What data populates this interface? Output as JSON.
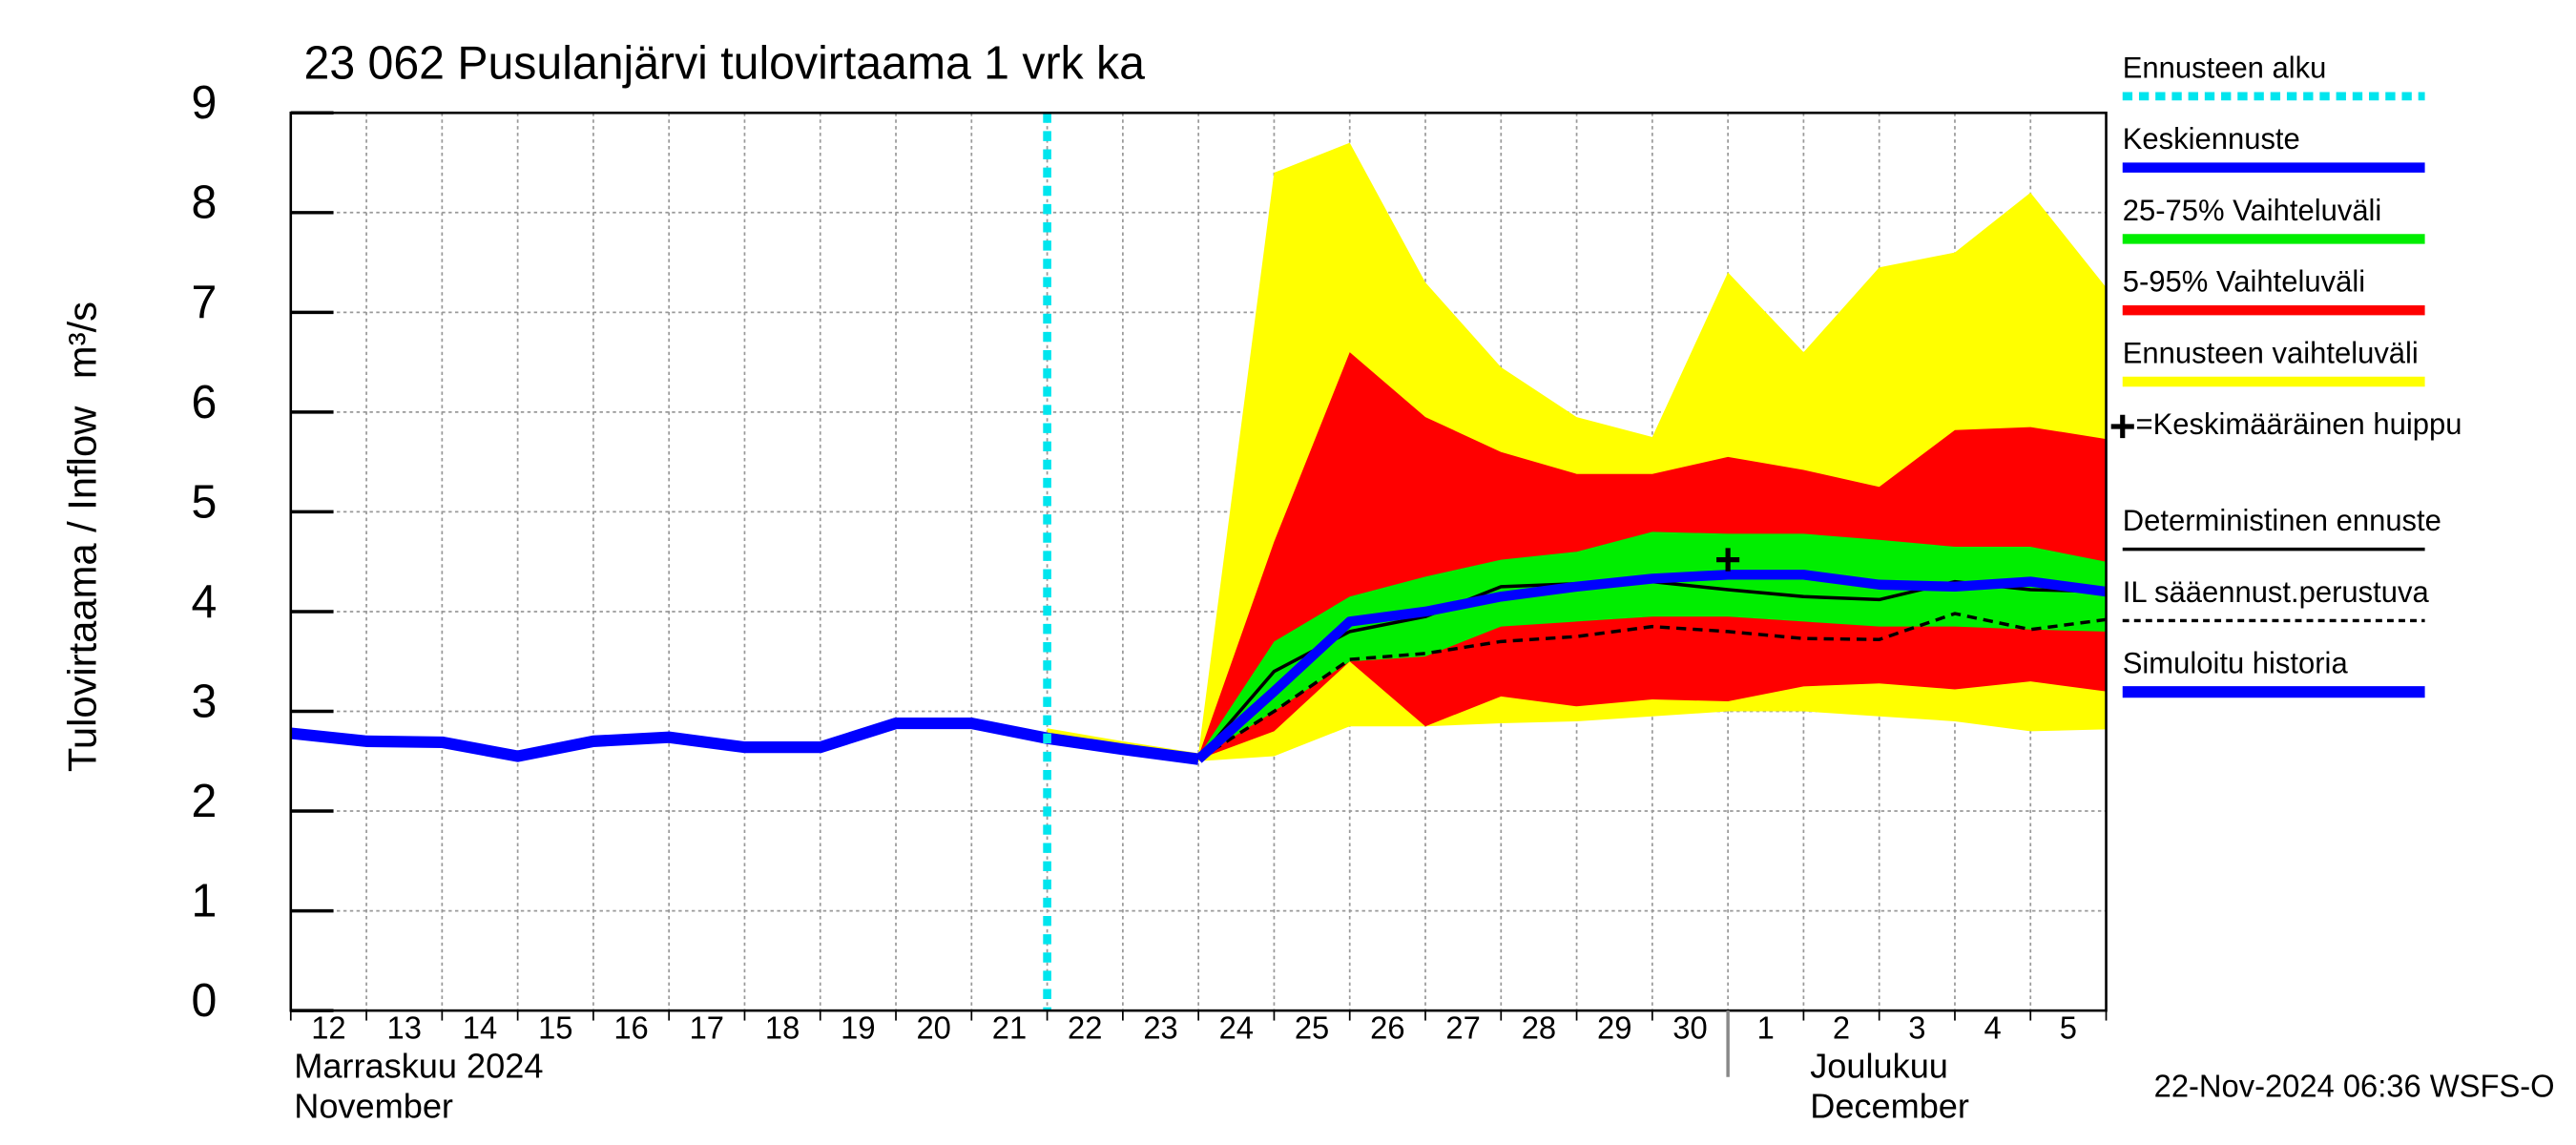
{
  "chart_data": {
    "type": "line",
    "title": "23 062 Pusulanjärvi tulovirtaama 1 vrk ka",
    "y_label": "Tulovirtaama / Inflow",
    "y_unit": "m³/s",
    "timestamp": "22-Nov-2024 06:36 WSFS-O",
    "categories": [
      "12",
      "13",
      "14",
      "15",
      "16",
      "17",
      "18",
      "19",
      "20",
      "21",
      "22",
      "23",
      "24",
      "25",
      "26",
      "27",
      "28",
      "29",
      "30",
      "1",
      "2",
      "3",
      "4",
      "5",
      null
    ],
    "months": [
      {
        "at": "12",
        "label": "Marraskuu 2024",
        "sub": "November"
      },
      {
        "at": "1",
        "label": "Joulukuu",
        "sub": "December"
      }
    ],
    "ylim": [
      0,
      9
    ],
    "yticks": [
      0,
      1,
      2,
      3,
      4,
      5,
      6,
      7,
      8,
      9
    ],
    "grid": true,
    "series": [
      {
        "name": "Ennusteen alku",
        "kind": "vline",
        "at": "22",
        "color": "#00e5ee",
        "width": 5,
        "dash": "6 5"
      },
      {
        "name": "Keskiennuste",
        "kind": "line",
        "color": "#0000ff",
        "width": 6,
        "values": [
          null,
          null,
          null,
          null,
          null,
          null,
          null,
          null,
          null,
          null,
          null,
          null,
          2.52,
          3.2,
          3.9,
          4.0,
          4.15,
          4.25,
          4.33,
          4.37,
          4.37,
          4.27,
          4.25,
          4.3,
          4.2
        ]
      },
      {
        "name": "25-75% Vaihteluväli",
        "kind": "band",
        "color": "#00ee00",
        "upper": [
          null,
          null,
          null,
          null,
          null,
          null,
          null,
          null,
          null,
          null,
          null,
          null,
          2.55,
          3.7,
          4.15,
          4.35,
          4.52,
          4.6,
          4.8,
          4.78,
          4.78,
          4.72,
          4.65,
          4.65,
          4.5
        ],
        "lower": [
          null,
          null,
          null,
          null,
          null,
          null,
          null,
          null,
          null,
          null,
          null,
          null,
          2.52,
          3.0,
          3.5,
          3.55,
          3.85,
          3.9,
          3.95,
          3.95,
          3.9,
          3.85,
          3.85,
          3.82,
          3.8
        ]
      },
      {
        "name": "5-95% Vaihteluväli",
        "kind": "band",
        "color": "#ff0000",
        "upper": [
          null,
          null,
          null,
          null,
          null,
          null,
          null,
          null,
          null,
          null,
          null,
          null,
          2.55,
          4.7,
          6.6,
          5.95,
          5.6,
          5.38,
          5.38,
          5.55,
          5.42,
          5.25,
          5.82,
          5.85,
          5.73
        ],
        "lower": [
          null,
          null,
          null,
          null,
          null,
          null,
          null,
          null,
          null,
          null,
          null,
          null,
          2.52,
          2.8,
          3.5,
          2.85,
          3.15,
          3.05,
          3.12,
          3.1,
          3.25,
          3.28,
          3.22,
          3.3,
          3.2
        ]
      },
      {
        "name": "Ennusteen vaihteluväli",
        "kind": "band",
        "color": "#ffff00",
        "upper": [
          null,
          null,
          null,
          null,
          null,
          null,
          null,
          null,
          null,
          null,
          2.83,
          2.7,
          2.58,
          8.4,
          8.7,
          7.3,
          6.45,
          5.95,
          5.75,
          7.4,
          6.6,
          7.45,
          7.6,
          8.2,
          7.25
        ],
        "lower": [
          null,
          null,
          null,
          null,
          null,
          null,
          null,
          null,
          null,
          null,
          2.7,
          2.6,
          2.5,
          2.55,
          2.85,
          2.85,
          2.88,
          2.9,
          2.95,
          3.0,
          3.0,
          2.95,
          2.9,
          2.8,
          2.82
        ]
      },
      {
        "name": "=Keskimääräinen huippu",
        "kind": "point",
        "at": "1",
        "value": 4.52,
        "color": "#000000"
      },
      {
        "name": "Deterministinen ennuste",
        "kind": "line",
        "color": "#000000",
        "width": 2,
        "values": [
          null,
          null,
          null,
          null,
          null,
          null,
          null,
          null,
          null,
          null,
          null,
          null,
          2.52,
          3.4,
          3.8,
          3.95,
          4.25,
          4.28,
          4.3,
          4.22,
          4.15,
          4.12,
          4.3,
          4.22,
          4.2
        ]
      },
      {
        "name": "IL sääennust.perustuva",
        "kind": "line",
        "color": "#000000",
        "width": 2,
        "dash": "6 4",
        "values": [
          null,
          null,
          null,
          null,
          null,
          null,
          null,
          null,
          null,
          null,
          null,
          null,
          2.52,
          3.0,
          3.52,
          3.58,
          3.7,
          3.75,
          3.85,
          3.8,
          3.73,
          3.72,
          3.98,
          3.82,
          3.92
        ]
      },
      {
        "name": "Simuloitu historia",
        "kind": "line",
        "color": "#0000ff",
        "width": 7,
        "values": [
          2.78,
          2.7,
          2.69,
          2.55,
          2.7,
          2.74,
          2.64,
          2.64,
          2.88,
          2.88,
          2.73,
          2.62,
          2.52,
          null,
          null,
          null,
          null,
          null,
          null,
          null,
          null,
          null,
          null,
          null,
          null
        ]
      }
    ]
  }
}
